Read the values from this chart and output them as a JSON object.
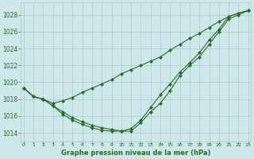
{
  "hours": [
    0,
    1,
    2,
    3,
    4,
    5,
    6,
    7,
    8,
    9,
    10,
    11,
    12,
    13,
    14,
    15,
    16,
    17,
    18,
    19,
    20,
    21,
    22,
    23
  ],
  "line1": [
    1019.3,
    1018.3,
    1018.0,
    1017.2,
    1016.2,
    1015.5,
    1015.0,
    1014.6,
    1014.3,
    1014.2,
    1014.2,
    1014.2,
    1015.2,
    1016.5,
    1017.5,
    1019.0,
    1020.8,
    1022.0,
    1023.0,
    1024.5,
    1026.0,
    1027.5,
    1028.0,
    1028.5
  ],
  "line2": [
    1019.3,
    1018.3,
    1018.0,
    1017.2,
    1016.5,
    1015.8,
    1015.3,
    1014.9,
    1014.6,
    1014.4,
    1014.2,
    1014.5,
    1015.5,
    1017.0,
    1018.5,
    1019.8,
    1021.2,
    1022.3,
    1023.5,
    1025.0,
    1026.3,
    1027.8,
    1028.2,
    1028.5
  ],
  "line3": [
    1019.3,
    1018.3,
    1018.0,
    1017.5,
    1017.8,
    1018.2,
    1018.8,
    1019.3,
    1019.8,
    1020.3,
    1021.0,
    1021.5,
    1022.0,
    1022.5,
    1023.0,
    1023.8,
    1024.5,
    1025.2,
    1025.8,
    1026.5,
    1027.2,
    1027.8,
    1028.2,
    1028.5
  ],
  "line_color": "#2d6a2d",
  "bg_color": "#cce8e8",
  "grid_color": "#aacccc",
  "xlabel_label": "Graphe pression niveau de la mer (hPa)",
  "ylim": [
    1013.0,
    1029.5
  ],
  "yticks": [
    1014,
    1016,
    1018,
    1020,
    1022,
    1024,
    1026,
    1028
  ],
  "marker": "D",
  "markersize": 2.0,
  "linewidth": 0.8
}
